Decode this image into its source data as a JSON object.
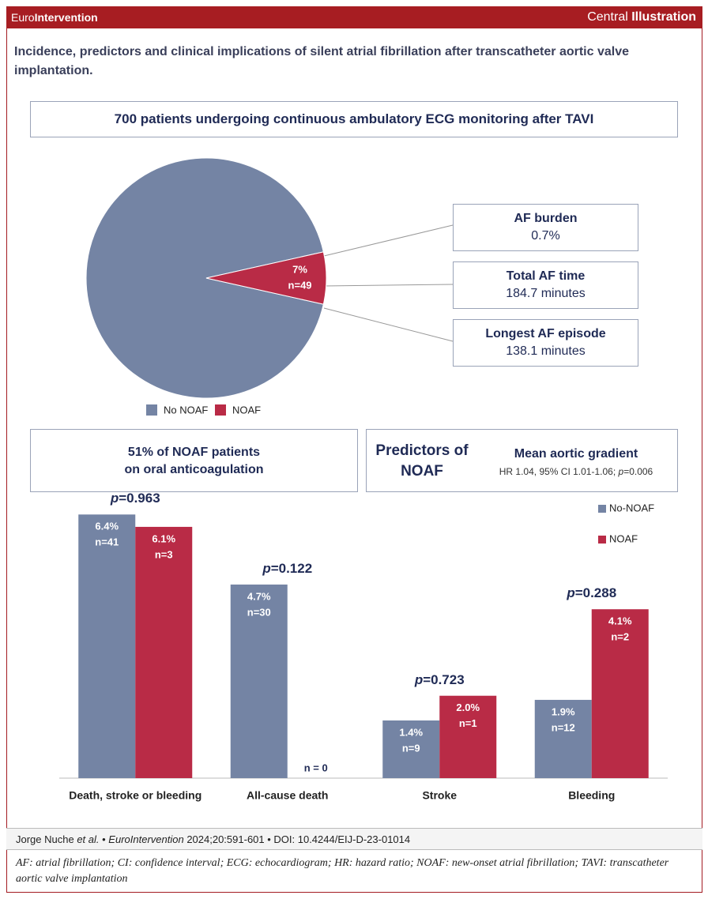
{
  "header": {
    "brand_plain": "Euro",
    "brand_bold": "Intervention",
    "label_plain": "Central ",
    "label_bold": "Illustration"
  },
  "subtitle": "Incidence, predictors and clinical implications of silent atrial fibrillation after transcatheter aortic valve implantation.",
  "chart_data": [
    {
      "type": "pie",
      "title": "700 patients undergoing continuous ambulatory ECG monitoring after TAVI",
      "categories": [
        "No NOAF",
        "NOAF"
      ],
      "values": [
        93,
        7
      ],
      "colors": [
        "#7484a4",
        "#b92b46"
      ],
      "value_labels": [
        null,
        "7%"
      ],
      "slice_notes": [
        null,
        "n=49"
      ],
      "callouts": [
        {
          "title": "AF burden",
          "value": "0.7%"
        },
        {
          "title": "Total AF time",
          "value": "184.7 minutes"
        },
        {
          "title": "Longest AF episode",
          "value": "138.1 minutes"
        }
      ]
    },
    {
      "type": "bar",
      "categories": [
        "Death, stroke or bleeding",
        "All-cause death",
        "Stroke",
        "Bleeding"
      ],
      "ylim": [
        0,
        7
      ],
      "series": [
        {
          "name": "No-NOAF",
          "color": "#7484a4",
          "values": [
            6.4,
            4.7,
            1.4,
            1.9
          ],
          "value_labels": [
            "6.4%",
            "4.7%",
            "1.4%",
            "1.9%"
          ],
          "counts": [
            "n=41",
            "n=30",
            "n=9",
            "n=12"
          ]
        },
        {
          "name": "NOAF",
          "color": "#b92b46",
          "values": [
            6.1,
            0,
            2.0,
            4.1
          ],
          "value_labels": [
            "6.1%",
            null,
            "2.0%",
            "4.1%"
          ],
          "counts": [
            "n=3",
            "n = 0",
            "n=1",
            "n=2"
          ]
        }
      ],
      "p_values": [
        "p=0.963",
        "p=0.122",
        "p=0.723",
        "p=0.288"
      ]
    }
  ],
  "anticoagulation": [
    "51% of NOAF patients",
    "on oral anticoagulation"
  ],
  "predictors": {
    "title": [
      "Predictors of",
      "NOAF"
    ],
    "name": "Mean aortic gradient",
    "stats": "HR 1.04, 95% CI 1.01-1.06; ",
    "p": "p=0.006"
  },
  "footer": {
    "citation": [
      "Jorge Nuche ",
      "et al.",
      " • ",
      "EuroIntervention",
      " 2024;20:591-601 • DOI: 10.4244/EIJ-D-23-01014"
    ],
    "abbreviations": "AF: atrial fibrillation; CI: confidence interval; ECG: echocardiogram; HR: hazard ratio; NOAF: new-onset atrial fibrillation; TAVI: transcatheter aortic valve implantation"
  }
}
